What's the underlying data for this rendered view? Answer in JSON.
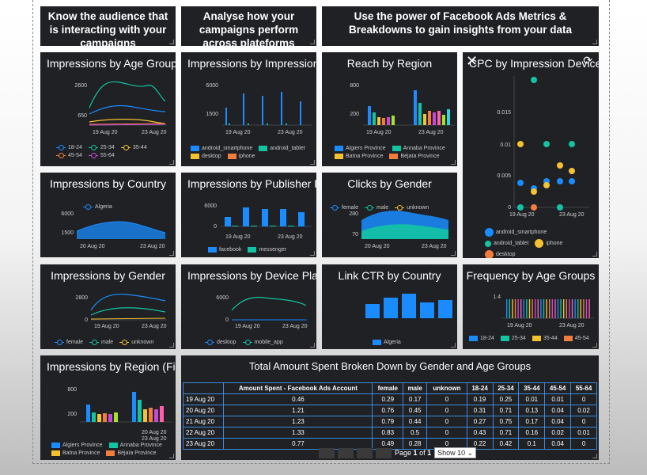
{
  "headings": [
    "Know the audience that is interacting with your campaigns",
    "Analyse how your campaigns perform across plateforms",
    "Use the power of Facebook Ads Metrics & Breakdowns to gain insights from your data"
  ],
  "colors": {
    "blue": "#1a8cff",
    "teal": "#13c4a3",
    "yellow": "#f5c22f",
    "orange": "#f47c3c",
    "purple": "#c44bd6",
    "pink": "#ff5fa8",
    "lime": "#a6e22e",
    "cyan": "#2ed8e0"
  },
  "panels": {
    "age": {
      "title": "Impressions by Age Groups",
      "yticks": [
        "2600",
        "650"
      ],
      "xticks": [
        "19 Aug 20",
        "23 Aug 20"
      ],
      "legend": [
        "18-24",
        "25-34",
        "35-44",
        "45-54",
        "55-64"
      ]
    },
    "device": {
      "title": "Impressions by Impression Device",
      "yticks": [
        "6000",
        "1500"
      ],
      "xticks": [
        "19 Aug 20",
        "23 Aug 20"
      ],
      "legend": [
        "android_smartphone",
        "android_tablet",
        "desktop",
        "iphone"
      ]
    },
    "reach": {
      "title": "Reach by Region",
      "yticks": [
        "800",
        "200"
      ],
      "xticks": [
        "19 Aug 20",
        "23 Aug 20"
      ],
      "legend": [
        "Algiers Province",
        "Annaba Province",
        "Batna Province",
        "Béjaïa Province"
      ]
    },
    "cpc": {
      "title": "CPC by Impression Device",
      "yticks": [
        "0.015",
        "0.01",
        "0.005",
        "0"
      ],
      "xticks": [
        "19 Aug 20",
        "23 Aug 20"
      ],
      "legend": [
        "android_smartphone",
        "android_tablet",
        "iphone",
        "desktop"
      ]
    },
    "country": {
      "title": "Impressions by Country",
      "yticks": [
        "6000",
        "1500"
      ],
      "xticks": [
        "20 Aug 20",
        "23 Aug 20"
      ],
      "legend": [
        "Algeria"
      ]
    },
    "publisher": {
      "title": "Impressions by Publisher Platform",
      "yticks": [
        "6000",
        "0"
      ],
      "xticks": [
        "19 Aug 20",
        "23 Aug 20"
      ],
      "legend": [
        "facebook",
        "messenger"
      ]
    },
    "clicks": {
      "title": "Clicks by Gender",
      "yticks": [
        "280",
        "70"
      ],
      "xticks": [
        "20 Aug 20",
        "23 Aug 20"
      ],
      "legend": [
        "female",
        "male",
        "unknown"
      ]
    },
    "gender": {
      "title": "Impressions by Gender",
      "yticks": [
        "2800",
        "0"
      ],
      "xticks": [
        "19 Aug 20",
        "23 Aug 20"
      ],
      "legend": [
        "female",
        "male",
        "unknown"
      ]
    },
    "deviceplat": {
      "title": "Impressions by Device Platform",
      "yticks": [
        "6000",
        "0"
      ],
      "xticks": [
        "19 Aug 20",
        "23 Aug 20"
      ],
      "legend": [
        "desktop",
        "mobile_app"
      ]
    },
    "ctr": {
      "title": "Link CTR by Country",
      "legend": [
        "Algeria"
      ]
    },
    "freq": {
      "title": "Frequency by Age Groups",
      "yticks": [
        "1.4"
      ],
      "xticks": [
        "19 Aug 20",
        "23 Aug 20"
      ],
      "legend": [
        "18-24",
        "25-34",
        "35-44",
        "45-54"
      ]
    },
    "regionf": {
      "title": "Impressions by Region (Filtered)",
      "yticks": [
        "800",
        "200"
      ],
      "xticks": [
        "20 Aug 20",
        "23 Aug 20"
      ],
      "legend": [
        "Algiers Province",
        "Annaba Province",
        "Batna Province",
        "Béjaïa Province"
      ]
    }
  },
  "table": {
    "title": "Total Amount Spent Broken Down by Gender and Age Groups",
    "headers": [
      "",
      "Amount Spent - Facebook Ads Account",
      "female",
      "male",
      "unknown",
      "18-24",
      "25-34",
      "35-44",
      "45-54",
      "55-64"
    ],
    "rows": [
      [
        "19 Aug 20",
        "0.46",
        "0.29",
        "0.17",
        "0",
        "0.19",
        "0.25",
        "0.01",
        "0.01",
        "0"
      ],
      [
        "20 Aug 20",
        "1.21",
        "0.76",
        "0.45",
        "0",
        "0.31",
        "0.71",
        "0.13",
        "0.04",
        "0.02"
      ],
      [
        "21 Aug 20",
        "1.23",
        "0.79",
        "0.44",
        "0",
        "0.27",
        "0.75",
        "0.17",
        "0.04",
        "0"
      ],
      [
        "22 Aug 20",
        "1.33",
        "0.83",
        "0.5",
        "0",
        "0.43",
        "0.71",
        "0.16",
        "0.02",
        "0.01"
      ],
      [
        "23 Aug 20",
        "0.77",
        "0.49",
        "0.28",
        "0",
        "0.22",
        "0.42",
        "0.1",
        "0.04",
        "0"
      ]
    ],
    "page_label": "Page",
    "page_current": "1",
    "page_of": "of",
    "page_total": "1",
    "show_label": "Show 10"
  }
}
